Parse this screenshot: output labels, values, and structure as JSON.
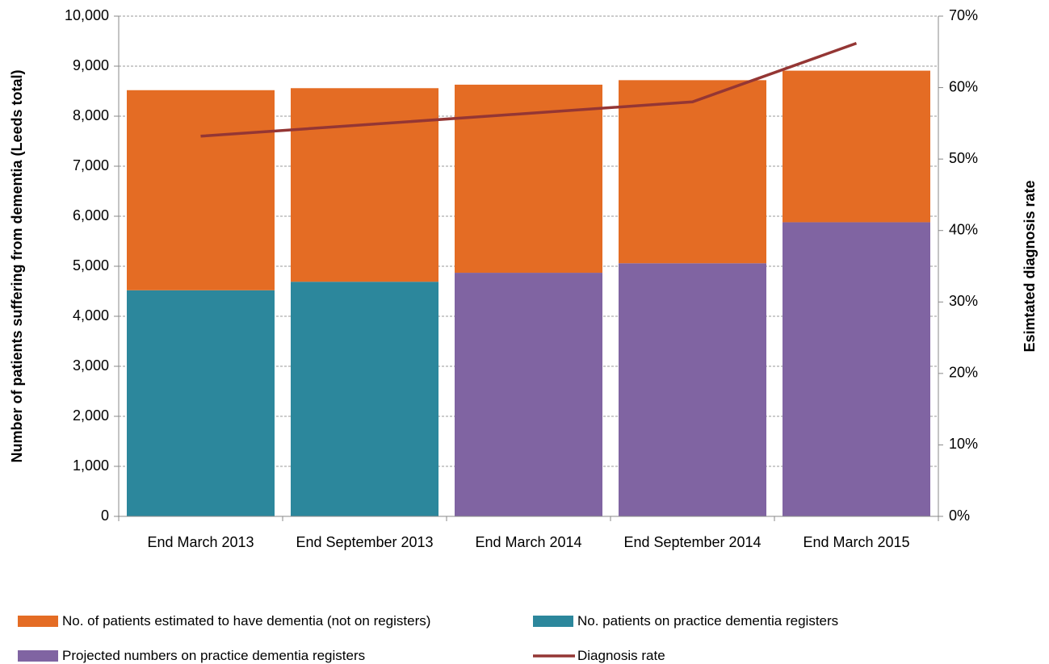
{
  "chart_data": {
    "type": "stacked-bar-line",
    "categories": [
      "End March 2013",
      "End September 2013",
      "End March 2014",
      "End September 2014",
      "End March 2015"
    ],
    "series": [
      {
        "name": "No. of patients estimated to have dementia (not on registers)",
        "color": "#e46c24",
        "type": "bar",
        "values": [
          4000,
          3870,
          3760,
          3660,
          3030
        ]
      },
      {
        "name": "No. patients on practice dementia registers",
        "color": "#2c879c",
        "type": "bar",
        "values": [
          4520,
          4690,
          null,
          null,
          null
        ]
      },
      {
        "name": "Projected numbers on practice dementia registers",
        "color": "#8064a2",
        "type": "bar",
        "values": [
          null,
          null,
          4870,
          5060,
          5880
        ]
      },
      {
        "name": "Diagnosis rate",
        "color": "#943634",
        "type": "line",
        "axis": "y2",
        "values": [
          53.2,
          54.8,
          56.4,
          58.0,
          66.2
        ]
      }
    ],
    "y_label": "Number of patients suffering from dementia (Leeds total)",
    "y2_label": "Esimtated diagnosis rate",
    "ylim": [
      0,
      10000
    ],
    "yticks": [
      0,
      {
        "value": 1000,
        "label": "1,000"
      },
      {
        "value": 2000,
        "label": "2,000"
      },
      {
        "value": 3000,
        "label": "3,000"
      },
      {
        "value": 4000,
        "label": "4,000"
      },
      {
        "value": 5000,
        "label": "5,000"
      },
      {
        "value": 6000,
        "label": "6,000"
      },
      {
        "value": 7000,
        "label": "7,000"
      },
      {
        "value": 8000,
        "label": "8,000"
      },
      {
        "value": 9000,
        "label": "9,000"
      },
      {
        "value": 10000,
        "label": "10,000"
      }
    ],
    "y2lim": [
      0,
      70
    ],
    "y2ticks": [
      {
        "value": 0,
        "label": "0%"
      },
      {
        "value": 10,
        "label": "10%"
      },
      {
        "value": 20,
        "label": "20%"
      },
      {
        "value": 30,
        "label": "30%"
      },
      {
        "value": 40,
        "label": "40%"
      },
      {
        "value": 50,
        "label": "50%"
      },
      {
        "value": 60,
        "label": "60%"
      },
      {
        "value": 70,
        "label": "70%"
      }
    ],
    "grid": true,
    "legend": "bottom"
  }
}
